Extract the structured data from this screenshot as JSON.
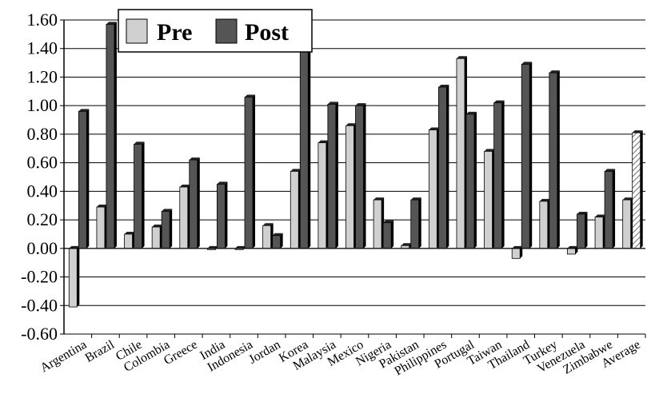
{
  "chart_data": {
    "type": "bar",
    "categories": [
      "Argentina",
      "Brazil",
      "Chile",
      "Colombia",
      "Greece",
      "India",
      "Indonesia",
      "Jordan",
      "Korea",
      "Malaysia",
      "Mexico",
      "Nigeria",
      "Pakistan",
      "Philippines",
      "Portugal",
      "Taiwan",
      "Thailand",
      "Turkey",
      "Venezuela",
      "Zimbabwe",
      "Average"
    ],
    "series": [
      {
        "name": "Pre",
        "color": "#d0d0d0",
        "values": [
          -0.41,
          0.29,
          0.1,
          0.15,
          0.43,
          0.0,
          0.0,
          0.16,
          0.54,
          0.74,
          0.86,
          0.34,
          0.02,
          0.83,
          1.33,
          0.68,
          -0.07,
          0.33,
          -0.04,
          0.22,
          0.34
        ]
      },
      {
        "name": "Post",
        "color": "#555555",
        "values": [
          0.96,
          1.57,
          0.73,
          0.26,
          0.62,
          0.45,
          1.06,
          0.09,
          1.42,
          1.01,
          1.0,
          0.18,
          0.34,
          1.13,
          0.94,
          1.02,
          1.29,
          1.23,
          0.24,
          0.54,
          0.81
        ]
      }
    ],
    "average_post_pattern": "hatched",
    "ylim": [
      -0.6,
      1.6
    ],
    "yticks": [
      "1.60",
      "1.40",
      "1.20",
      "1.00",
      "0.80",
      "0.60",
      "0.40",
      "0.20",
      "0.00",
      "-0.20",
      "-0.40",
      "-0.60"
    ],
    "ytick_values": [
      1.6,
      1.4,
      1.2,
      1.0,
      0.8,
      0.6,
      0.4,
      0.2,
      0.0,
      -0.2,
      -0.4,
      -0.6
    ],
    "grid": true,
    "legend_position": "top-left",
    "title": "",
    "xlabel": "",
    "ylabel": ""
  }
}
